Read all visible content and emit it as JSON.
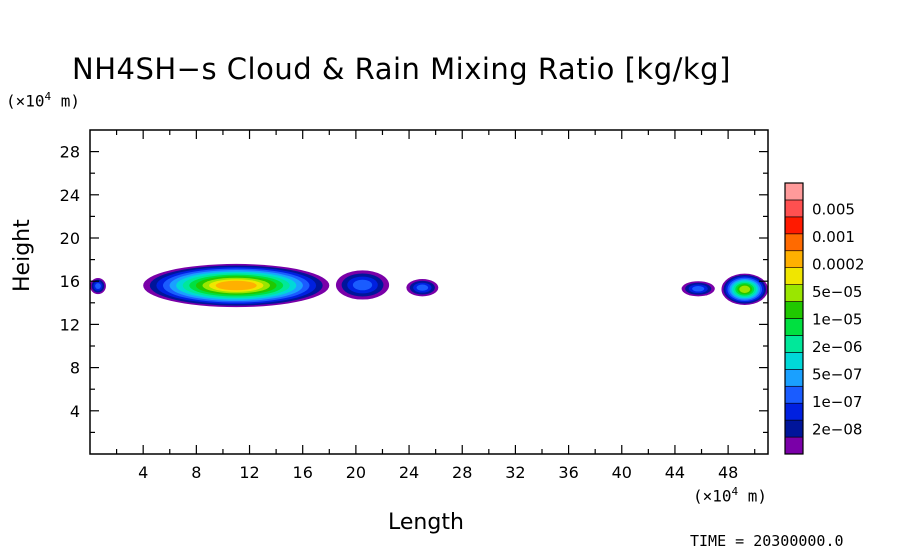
{
  "chart_data": {
    "type": "heatmap",
    "title": "NH4SH−s Cloud & Rain Mixing Ratio [kg/kg]",
    "xlabel": "Length",
    "ylabel": "Height",
    "x_unit": "(×10⁴ m)",
    "y_unit": "(×10⁴ m)",
    "x_unit_base": "(×10",
    "x_unit_exp": "4",
    "x_unit_tail": " m)",
    "xlim": [
      0,
      51
    ],
    "ylim": [
      0,
      30
    ],
    "x_ticks": [
      "4",
      "8",
      "12",
      "16",
      "20",
      "24",
      "28",
      "32",
      "36",
      "40",
      "44",
      "48"
    ],
    "x_tick_values": [
      4,
      8,
      12,
      16,
      20,
      24,
      28,
      32,
      36,
      40,
      44,
      48
    ],
    "y_ticks": [
      "4",
      "8",
      "12",
      "16",
      "20",
      "24",
      "28"
    ],
    "y_tick_values": [
      4,
      8,
      12,
      16,
      20,
      24,
      28
    ],
    "colorbar": {
      "labels": [
        "0.005",
        "0.001",
        "0.0002",
        "5e−05",
        "1e−05",
        "2e−06",
        "5e−07",
        "1e−07",
        "2e−08"
      ],
      "colors": [
        "#7a00a8",
        "#00159a",
        "#0020e0",
        "#1a5cff",
        "#1aa0ff",
        "#00d8d8",
        "#00e89a",
        "#00e040",
        "#20c800",
        "#9ae600",
        "#f0e600",
        "#ffb000",
        "#ff6a00",
        "#ff1a00",
        "#ff5050",
        "#ff9a9a"
      ]
    },
    "regions": [
      {
        "name": "cloud-left-edge",
        "x_range": [
          0,
          1.2
        ],
        "y_range": [
          14.8,
          16.3
        ],
        "max_level": "1e−07"
      },
      {
        "name": "main-cloud",
        "x_range": [
          4,
          18
        ],
        "y_range": [
          13.6,
          17.6
        ],
        "max_level": "0.0002"
      },
      {
        "name": "cloud-20",
        "x_range": [
          18.5,
          22.5
        ],
        "y_range": [
          14.3,
          17.0
        ],
        "max_level": "1e−07"
      },
      {
        "name": "cloud-25",
        "x_range": [
          23.8,
          26.2
        ],
        "y_range": [
          14.6,
          16.2
        ],
        "max_level": "1e−07"
      },
      {
        "name": "cloud-45",
        "x_range": [
          44.5,
          47
        ],
        "y_range": [
          14.6,
          16.0
        ],
        "max_level": "1e−07"
      },
      {
        "name": "cloud-49",
        "x_range": [
          47.5,
          51
        ],
        "y_range": [
          13.8,
          16.7
        ],
        "max_level": "5e−05"
      }
    ]
  },
  "footer": {
    "time_text": "TIME = 20300000.0"
  }
}
